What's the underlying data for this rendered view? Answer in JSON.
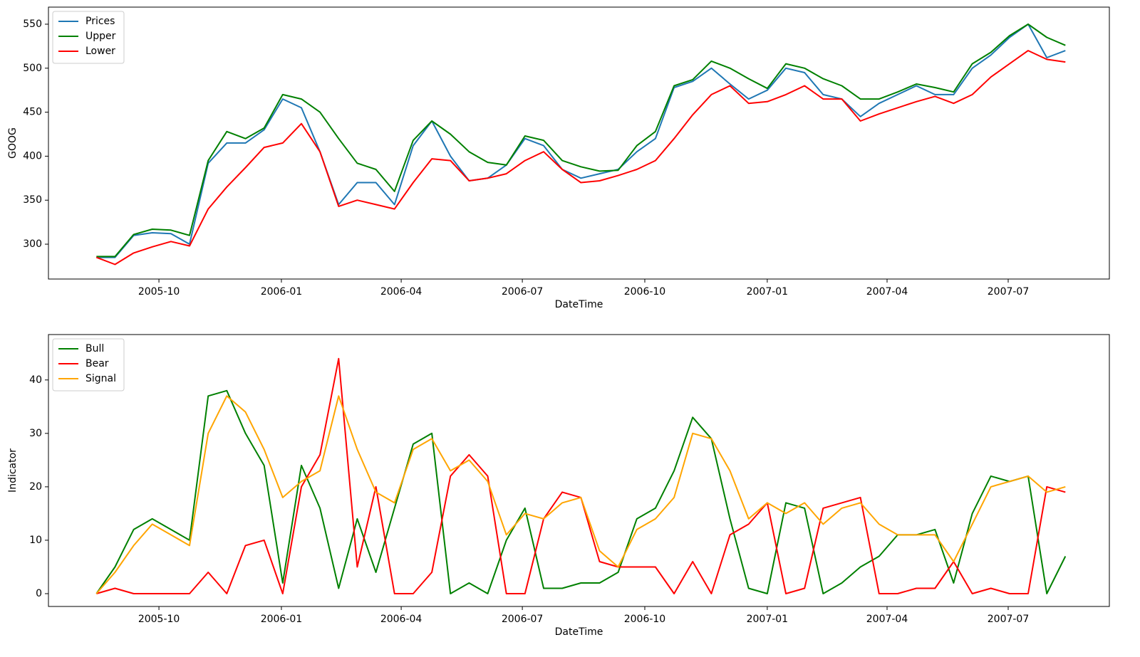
{
  "chart_data": [
    {
      "type": "line",
      "xlabel": "DateTime",
      "ylabel": "GOOG",
      "legend": "upper left",
      "grid": false,
      "x": [
        "2005-08-15",
        "2005-08-29",
        "2005-09-12",
        "2005-09-26",
        "2005-10-10",
        "2005-10-24",
        "2005-11-07",
        "2005-11-21",
        "2005-12-05",
        "2005-12-19",
        "2006-01-02",
        "2006-01-16",
        "2006-01-30",
        "2006-02-13",
        "2006-02-27",
        "2006-03-13",
        "2006-03-27",
        "2006-04-10",
        "2006-04-24",
        "2006-05-08",
        "2006-05-22",
        "2006-06-05",
        "2006-06-19",
        "2006-07-03",
        "2006-07-17",
        "2006-07-31",
        "2006-08-14",
        "2006-08-28",
        "2006-09-11",
        "2006-09-25",
        "2006-10-09",
        "2006-10-23",
        "2006-11-06",
        "2006-11-20",
        "2006-12-04",
        "2006-12-18",
        "2007-01-01",
        "2007-01-15",
        "2007-01-29",
        "2007-02-12",
        "2007-02-26",
        "2007-03-12",
        "2007-03-26",
        "2007-04-09",
        "2007-04-23",
        "2007-05-07",
        "2007-05-21",
        "2007-06-04",
        "2007-06-18",
        "2007-07-02",
        "2007-07-16",
        "2007-07-30",
        "2007-08-13"
      ],
      "series": [
        {
          "name": "Prices",
          "color": "#1f77b4",
          "values": [
            285,
            285,
            310,
            313,
            312,
            300,
            392,
            415,
            415,
            430,
            465,
            455,
            405,
            345,
            370,
            370,
            345,
            412,
            440,
            400,
            372,
            375,
            390,
            420,
            412,
            385,
            375,
            380,
            385,
            405,
            420,
            478,
            485,
            500,
            482,
            465,
            475,
            500,
            495,
            470,
            465,
            445,
            460,
            470,
            480,
            470,
            470,
            500,
            515,
            535,
            550,
            512,
            520
          ]
        },
        {
          "name": "Upper",
          "color": "#008000",
          "values": [
            286,
            286,
            311,
            317,
            316,
            310,
            395,
            428,
            420,
            432,
            470,
            465,
            450,
            420,
            392,
            385,
            360,
            418,
            440,
            425,
            405,
            393,
            390,
            423,
            418,
            395,
            388,
            383,
            384,
            412,
            428,
            480,
            487,
            508,
            500,
            488,
            477,
            505,
            500,
            488,
            480,
            465,
            465,
            473,
            482,
            478,
            473,
            505,
            518,
            537,
            550,
            535,
            526
          ]
        },
        {
          "name": "Lower",
          "color": "#ff0000",
          "values": [
            285,
            277,
            290,
            297,
            303,
            298,
            340,
            365,
            387,
            410,
            415,
            437,
            405,
            343,
            350,
            345,
            340,
            370,
            397,
            395,
            372,
            375,
            380,
            395,
            405,
            385,
            370,
            372,
            378,
            385,
            395,
            420,
            447,
            470,
            480,
            460,
            462,
            470,
            480,
            465,
            465,
            440,
            448,
            455,
            462,
            468,
            460,
            470,
            490,
            505,
            520,
            510,
            507
          ]
        }
      ],
      "xlim": [
        "2005-07-10",
        "2007-09-15"
      ],
      "xticks": [
        {
          "value": "2005-10-01",
          "label": "2005-10"
        },
        {
          "value": "2006-01-01",
          "label": "2006-01"
        },
        {
          "value": "2006-04-01",
          "label": "2006-04"
        },
        {
          "value": "2006-07-01",
          "label": "2006-07"
        },
        {
          "value": "2006-10-01",
          "label": "2006-10"
        },
        {
          "value": "2007-01-01",
          "label": "2007-01"
        },
        {
          "value": "2007-04-01",
          "label": "2007-04"
        },
        {
          "value": "2007-07-01",
          "label": "2007-07"
        }
      ],
      "ylim": [
        260.4,
        569.4
      ],
      "yticks": [
        300,
        350,
        400,
        450,
        500,
        550
      ]
    },
    {
      "type": "line",
      "xlabel": "DateTime",
      "ylabel": "Indicator",
      "legend": "upper left",
      "grid": false,
      "x": [
        "2005-08-15",
        "2005-08-29",
        "2005-09-12",
        "2005-09-26",
        "2005-10-10",
        "2005-10-24",
        "2005-11-07",
        "2005-11-21",
        "2005-12-05",
        "2005-12-19",
        "2006-01-02",
        "2006-01-16",
        "2006-01-30",
        "2006-02-13",
        "2006-02-27",
        "2006-03-13",
        "2006-03-27",
        "2006-04-10",
        "2006-04-24",
        "2006-05-08",
        "2006-05-22",
        "2006-06-05",
        "2006-06-19",
        "2006-07-03",
        "2006-07-17",
        "2006-07-31",
        "2006-08-14",
        "2006-08-28",
        "2006-09-11",
        "2006-09-25",
        "2006-10-09",
        "2006-10-23",
        "2006-11-06",
        "2006-11-20",
        "2006-12-04",
        "2006-12-18",
        "2007-01-01",
        "2007-01-15",
        "2007-01-29",
        "2007-02-12",
        "2007-02-26",
        "2007-03-12",
        "2007-03-26",
        "2007-04-09",
        "2007-04-23",
        "2007-05-07",
        "2007-05-21",
        "2007-06-04",
        "2007-06-18",
        "2007-07-02",
        "2007-07-16",
        "2007-07-30",
        "2007-08-13"
      ],
      "series": [
        {
          "name": "Bull",
          "color": "#008000",
          "values": [
            0,
            5,
            12,
            14,
            12,
            10,
            37,
            38,
            30,
            24,
            2,
            24,
            16,
            1,
            14,
            4,
            16,
            28,
            30,
            0,
            2,
            0,
            10,
            16,
            1,
            1,
            2,
            2,
            4,
            14,
            16,
            23,
            33,
            29,
            14,
            1,
            0,
            17,
            16,
            0,
            2,
            5,
            7,
            11,
            11,
            12,
            2,
            15,
            22,
            21,
            22,
            0,
            7
          ]
        },
        {
          "name": "Bear",
          "color": "#ff0000",
          "values": [
            0,
            1,
            0,
            0,
            0,
            0,
            4,
            0,
            9,
            10,
            0,
            20,
            26,
            44,
            5,
            20,
            0,
            0,
            4,
            22,
            26,
            22,
            0,
            0,
            14,
            19,
            18,
            6,
            5,
            5,
            5,
            0,
            6,
            0,
            11,
            13,
            17,
            0,
            1,
            16,
            17,
            18,
            0,
            0,
            1,
            1,
            6,
            0,
            1,
            0,
            0,
            20,
            19
          ]
        },
        {
          "name": "Signal",
          "color": "#ffa500",
          "values": [
            0,
            4,
            9,
            13,
            11,
            9,
            30,
            37,
            34,
            27,
            18,
            21,
            23,
            37,
            27,
            19,
            17,
            27,
            29,
            23,
            25,
            21,
            11,
            15,
            14,
            17,
            18,
            8,
            5,
            12,
            14,
            18,
            30,
            29,
            23,
            14,
            17,
            15,
            17,
            13,
            16,
            17,
            13,
            11,
            11,
            11,
            6,
            13,
            20,
            21,
            22,
            19,
            20
          ]
        }
      ],
      "xlim": [
        "2005-07-10",
        "2007-09-15"
      ],
      "xticks": [
        {
          "value": "2005-10-01",
          "label": "2005-10"
        },
        {
          "value": "2006-01-01",
          "label": "2006-01"
        },
        {
          "value": "2006-04-01",
          "label": "2006-04"
        },
        {
          "value": "2006-07-01",
          "label": "2006-07"
        },
        {
          "value": "2006-10-01",
          "label": "2006-10"
        },
        {
          "value": "2007-01-01",
          "label": "2007-01"
        },
        {
          "value": "2007-04-01",
          "label": "2007-04"
        },
        {
          "value": "2007-07-01",
          "label": "2007-07"
        }
      ],
      "ylim": [
        -2.4,
        48.5
      ],
      "yticks": [
        0,
        10,
        20,
        30,
        40
      ]
    }
  ]
}
